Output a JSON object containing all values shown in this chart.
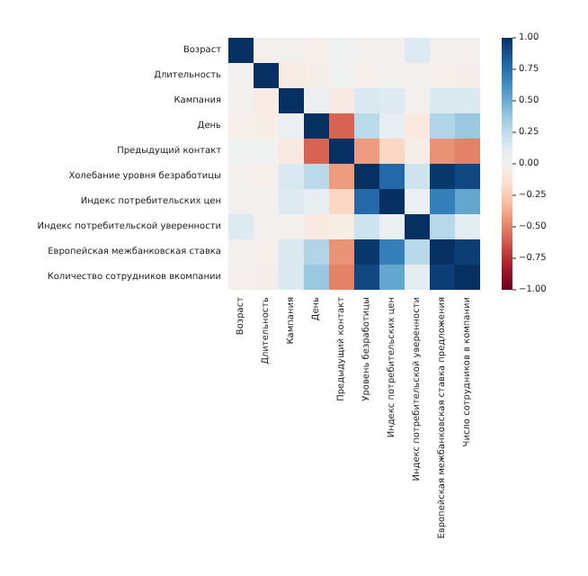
{
  "chart_data": {
    "type": "heatmap",
    "categories": [
      "Возраст",
      "Длительность",
      "Кампания",
      "День",
      "Предыдущий контакт",
      "Уровень безработицы",
      "Индекс потребительских цен",
      "Индекс потребительской уверенности",
      "Европейская межбанковская ставка предложения",
      "Число сотрудников в компании"
    ],
    "y_categories": [
      "Возраст",
      "Длительность",
      "Кампания",
      "День",
      "Предыдущий контакт",
      "Холебание уровня безработицы",
      "Индекс потребительских цен",
      "Индекс потребительской уверенности",
      "Европейская межбанковская ставка",
      "Количество сотрудников вкомпании"
    ],
    "cells": [
      [
        1,
        0,
        0.01,
        -0.03,
        0.02,
        0,
        0,
        0.13,
        0.01,
        -0.02
      ],
      [
        0,
        1,
        -0.07,
        -0.05,
        0.02,
        -0.03,
        0.01,
        -0.01,
        -0.03,
        -0.04
      ],
      [
        0.01,
        -0.07,
        1,
        0.05,
        -0.08,
        0.15,
        0.13,
        -0.01,
        0.14,
        0.14
      ],
      [
        -0.03,
        -0.05,
        0.05,
        1,
        -0.59,
        0.27,
        0.08,
        -0.09,
        0.3,
        0.37
      ],
      [
        0.02,
        0.02,
        -0.08,
        -0.59,
        1,
        -0.42,
        -0.2,
        -0.05,
        -0.45,
        -0.5
      ],
      [
        0,
        -0.03,
        0.15,
        0.27,
        -0.42,
        1,
        0.78,
        0.2,
        0.97,
        0.91
      ],
      [
        0,
        0.01,
        0.13,
        0.08,
        -0.2,
        0.78,
        1,
        0.06,
        0.69,
        0.52
      ],
      [
        0.13,
        -0.01,
        -0.01,
        -0.09,
        -0.05,
        0.2,
        0.06,
        1,
        0.28,
        0.1
      ],
      [
        0.01,
        -0.03,
        0.14,
        0.3,
        -0.45,
        0.97,
        0.69,
        0.28,
        1,
        0.95
      ],
      [
        -0.02,
        -0.04,
        0.14,
        0.37,
        -0.5,
        0.91,
        0.52,
        0.1,
        0.95,
        1
      ]
    ],
    "clim": [
      -1,
      1
    ],
    "cticks": [
      {
        "value": -1,
        "label": "−1.00"
      },
      {
        "value": -0.75,
        "label": "−0.75"
      },
      {
        "value": -0.5,
        "label": "−0.50"
      },
      {
        "value": -0.25,
        "label": "−0.25"
      },
      {
        "value": 0,
        "label": "0.00"
      },
      {
        "value": 0.25,
        "label": "0.25"
      },
      {
        "value": 0.5,
        "label": "0.50"
      },
      {
        "value": 0.75,
        "label": "0.75"
      },
      {
        "value": 1,
        "label": "1.00"
      }
    ]
  }
}
